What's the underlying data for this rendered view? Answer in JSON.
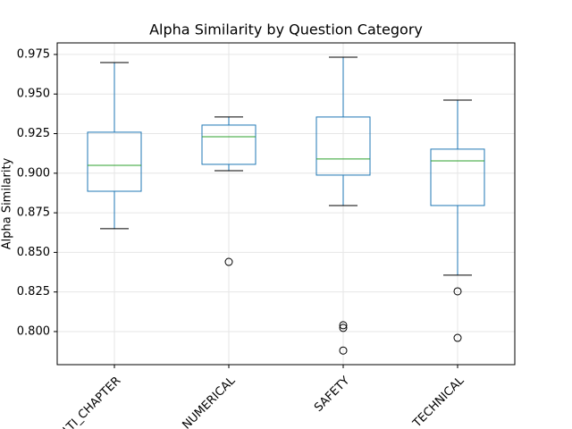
{
  "chart_data": {
    "type": "box",
    "title": "Alpha Similarity by Question Category",
    "y_label": "Alpha Similarity",
    "categories": [
      "MULTI_CHAPTER",
      "NUMERICAL",
      "SAFETY",
      "TECHNICAL"
    ],
    "boxes": [
      {
        "whisker_low": 0.865,
        "q1": 0.8886,
        "median": 0.905,
        "q3": 0.9259,
        "whisker_high": 0.9699,
        "outliers": []
      },
      {
        "whisker_low": 0.9016,
        "q1": 0.9056,
        "median": 0.923,
        "q3": 0.9304,
        "whisker_high": 0.9355,
        "outliers": [
          0.844
        ]
      },
      {
        "whisker_low": 0.8796,
        "q1": 0.8988,
        "median": 0.909,
        "q3": 0.9355,
        "whisker_high": 0.9733,
        "outliers": [
          0.804,
          0.8023,
          0.788
        ]
      },
      {
        "whisker_low": 0.8356,
        "q1": 0.8796,
        "median": 0.9078,
        "q3": 0.9152,
        "whisker_high": 0.9462,
        "outliers": [
          0.8254,
          0.796
        ]
      }
    ],
    "box_color": "#1f77b4",
    "median_color": "#2ca02c",
    "ylim": [
      0.7791,
      0.9823
    ],
    "yticks": [
      {
        "value": 0.8,
        "label": "0.800"
      },
      0.825,
      {
        "value": 0.85,
        "label": "0.850"
      },
      0.875,
      {
        "value": 0.9,
        "label": "0.900"
      },
      0.925,
      {
        "value": 0.95,
        "label": "0.950"
      },
      0.975
    ],
    "grid": true
  }
}
